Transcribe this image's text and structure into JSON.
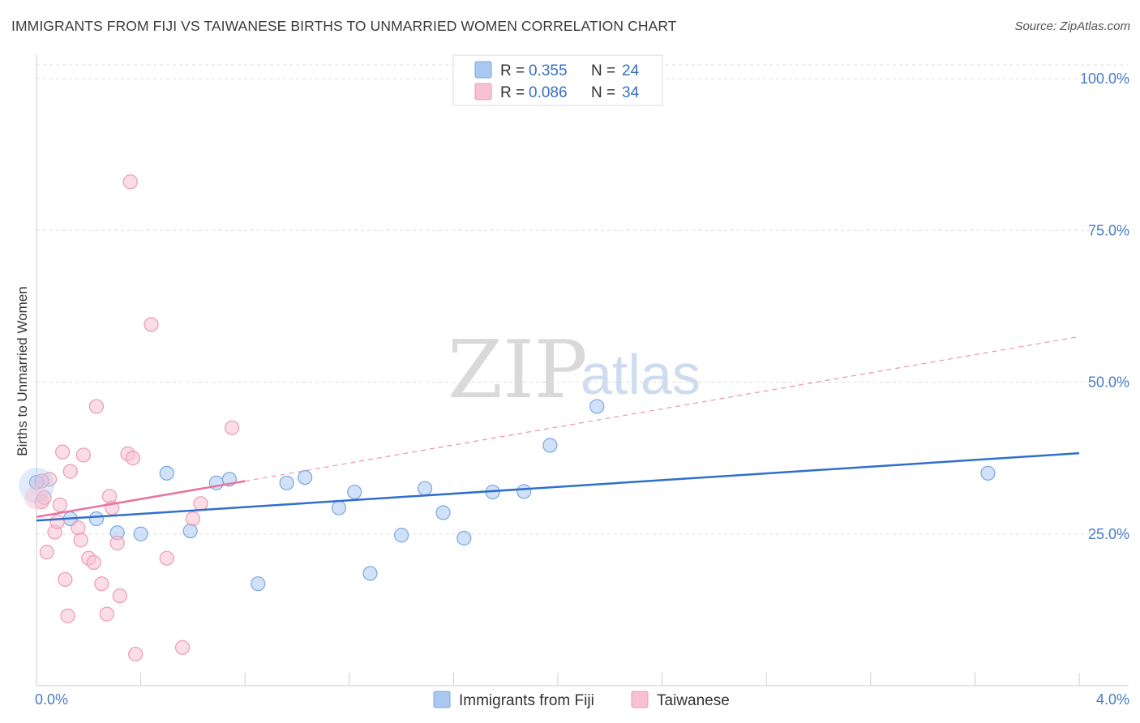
{
  "header": {
    "title": "IMMIGRANTS FROM FIJI VS TAIWANESE BIRTHS TO UNMARRIED WOMEN CORRELATION CHART",
    "source": "Source: ZipAtlas.com"
  },
  "watermark": {
    "zip": "ZIP",
    "atlas": "atlas"
  },
  "legend": {
    "rows": [
      {
        "r_label": "R = ",
        "r_value": "0.355",
        "n_label": "N = ",
        "n_value": "24",
        "color": "#a9c8f2",
        "border": "#7aa7e0"
      },
      {
        "r_label": "R = ",
        "r_value": "0.086",
        "n_label": "N = ",
        "n_value": "34",
        "color": "#f7c1d2",
        "border": "#ec9ab4"
      }
    ]
  },
  "bottom_legend": [
    {
      "label": "Immigrants from Fiji",
      "color": "#a9c8f2",
      "border": "#7aa7e0"
    },
    {
      "label": "Taiwanese",
      "color": "#f7c1d2",
      "border": "#ec9ab4"
    }
  ],
  "chart_data": {
    "type": "scatter",
    "title": "IMMIGRANTS FROM FIJI VS TAIWANESE BIRTHS TO UNMARRIED WOMEN CORRELATION CHART",
    "xlabel": "",
    "ylabel": "Births to Unmarried Women",
    "xlim": [
      0,
      4
    ],
    "ylim": [
      0,
      105
    ],
    "x_tick_labels": [
      {
        "value": 0,
        "label": "0.0%"
      },
      {
        "value": 4,
        "label": "4.0%"
      }
    ],
    "x_ticks_minor": [
      0.4,
      0.8,
      1.2,
      1.6,
      2.0,
      2.4,
      2.8,
      3.2,
      3.6,
      4.0
    ],
    "y_ticks": [
      {
        "value": 25,
        "label": "25.0%"
      },
      {
        "value": 50,
        "label": "50.0%"
      },
      {
        "value": 75,
        "label": "75.0%"
      },
      {
        "value": 100,
        "label": "100.0%"
      }
    ],
    "grid": true,
    "legend_position": "top-center",
    "series": [
      {
        "name": "Immigrants from Fiji",
        "R": 0.355,
        "N": 24,
        "color": "#a9c8f2",
        "stroke": "#7aa7e0",
        "trend_color": "#2f6fcc",
        "trend": {
          "x": [
            0,
            4
          ],
          "y": [
            27.2,
            38.3
          ]
        },
        "points": [
          [
            0.0,
            33.5
          ],
          [
            0.13,
            27.5
          ],
          [
            0.23,
            27.5
          ],
          [
            0.31,
            25.2
          ],
          [
            0.4,
            25.0
          ],
          [
            0.5,
            35.0
          ],
          [
            0.59,
            25.5
          ],
          [
            0.69,
            33.4
          ],
          [
            0.74,
            34.0
          ],
          [
            0.85,
            16.8
          ],
          [
            0.96,
            33.4
          ],
          [
            1.03,
            34.3
          ],
          [
            1.16,
            29.3
          ],
          [
            1.22,
            31.9
          ],
          [
            1.28,
            18.5
          ],
          [
            1.4,
            24.8
          ],
          [
            1.49,
            32.5
          ],
          [
            1.56,
            28.5
          ],
          [
            1.64,
            24.3
          ],
          [
            1.75,
            31.9
          ],
          [
            1.87,
            32.0
          ],
          [
            1.97,
            39.6
          ],
          [
            2.15,
            46.0
          ],
          [
            3.65,
            35.0
          ]
        ]
      },
      {
        "name": "Taiwanese",
        "R": 0.086,
        "N": 34,
        "color": "#f7c1d2",
        "stroke": "#ec9ab4",
        "trend_color": "#e8759b",
        "trend": {
          "x": [
            0,
            0.8
          ],
          "y": [
            27.8,
            33.7
          ]
        },
        "trend_dashed": {
          "x": [
            0.8,
            4
          ],
          "y": [
            33.7,
            57.5
          ]
        },
        "points": [
          [
            0.02,
            30.3
          ],
          [
            0.03,
            31.0
          ],
          [
            0.04,
            22.0
          ],
          [
            0.05,
            34.0
          ],
          [
            0.07,
            25.3
          ],
          [
            0.08,
            27.0
          ],
          [
            0.09,
            29.8
          ],
          [
            0.1,
            38.5
          ],
          [
            0.11,
            17.5
          ],
          [
            0.12,
            11.5
          ],
          [
            0.13,
            35.3
          ],
          [
            0.16,
            26.0
          ],
          [
            0.17,
            24.0
          ],
          [
            0.18,
            38.0
          ],
          [
            0.2,
            21.0
          ],
          [
            0.22,
            20.3
          ],
          [
            0.23,
            46.0
          ],
          [
            0.25,
            16.8
          ],
          [
            0.27,
            11.8
          ],
          [
            0.28,
            31.2
          ],
          [
            0.29,
            29.3
          ],
          [
            0.31,
            23.5
          ],
          [
            0.32,
            14.8
          ],
          [
            0.35,
            38.2
          ],
          [
            0.36,
            83.0
          ],
          [
            0.37,
            37.5
          ],
          [
            0.38,
            5.2
          ],
          [
            0.44,
            59.5
          ],
          [
            0.5,
            21.0
          ],
          [
            0.56,
            6.3
          ],
          [
            0.6,
            27.5
          ],
          [
            0.63,
            30.0
          ],
          [
            0.75,
            42.5
          ],
          [
            0.02,
            33.7
          ]
        ]
      }
    ]
  }
}
